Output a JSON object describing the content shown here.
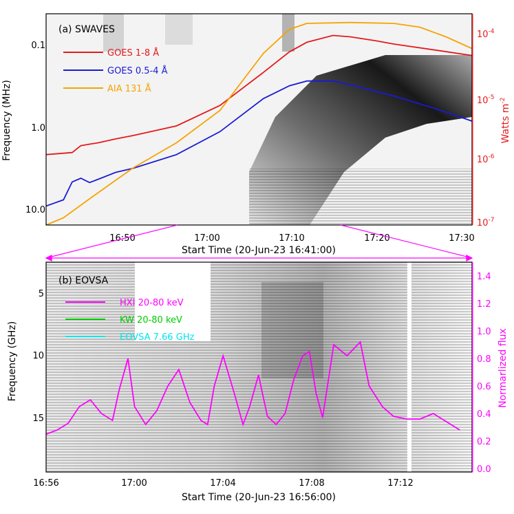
{
  "chart_data": [
    {
      "type": "line",
      "panel_label": "(a) SWAVES",
      "xlabel": "Start Time (20-Jun-23 16:41:00)",
      "ylabel": "Frequency (MHz)",
      "y2label": "Watts m",
      "y2label_sup": "-2",
      "x_ticks": [
        "16:50",
        "17:00",
        "17:10",
        "17:20",
        "17:30"
      ],
      "y_ticks": [
        "0.1",
        "1.0",
        "10.0"
      ],
      "y2_ticks": [
        {
          "base": "10",
          "exp": "-4"
        },
        {
          "base": "10",
          "exp": "-5"
        },
        {
          "base": "10",
          "exp": "-6"
        },
        {
          "base": "10",
          "exp": "-7"
        }
      ],
      "legend": [
        {
          "label": "GOES 1-8 Å",
          "color": "#e41a1c"
        },
        {
          "label": "GOES 0.5-4 Å",
          "color": "#1a1ad6"
        },
        {
          "label": "AIA 131 Å",
          "color": "#f5a300"
        }
      ],
      "series": [
        {
          "name": "GOES 1-8 Å",
          "color": "#e41a1c",
          "unit": "W m^-2",
          "t_min": [
            0,
            3,
            4,
            5,
            6,
            8,
            10,
            15,
            20,
            25,
            28,
            30,
            33,
            35,
            38,
            40,
            45,
            49
          ],
          "flux": [
            1.3e-06,
            1.4e-06,
            1.8e-06,
            1.9e-06,
            2e-06,
            2.3e-06,
            2.6e-06,
            3.7e-06,
            7.8e-06,
            2.6e-05,
            5.5e-05,
            7.8e-05,
            0.0001,
            9.5e-05,
            8.2e-05,
            7.3e-05,
            5.8e-05,
            4.8e-05
          ]
        },
        {
          "name": "GOES 0.5-4 Å",
          "color": "#1a1ad6",
          "unit": "W m^-2",
          "t_min": [
            0,
            2,
            3,
            4,
            5,
            6,
            8,
            10,
            15,
            20,
            25,
            28,
            30,
            33,
            35,
            40,
            45,
            49
          ],
          "flux": [
            2e-07,
            2.5e-07,
            4.8e-07,
            5.5e-07,
            4.7e-07,
            5.3e-07,
            6.8e-07,
            7.9e-07,
            1.3e-06,
            3e-06,
            1e-05,
            1.6e-05,
            1.9e-05,
            1.9e-05,
            1.65e-05,
            1.1e-05,
            6.8e-06,
            4.4e-06
          ]
        },
        {
          "name": "AIA 131 Å",
          "color": "#f5a300",
          "unit": "W m^-2 (scaled)",
          "t_min": [
            0,
            2,
            5,
            10,
            15,
            20,
            25,
            28,
            30,
            35,
            40,
            43,
            46,
            49
          ],
          "flux": [
            1e-07,
            1.3e-07,
            2.6e-07,
            8e-07,
            2e-06,
            6.5e-06,
            5.2e-05,
            0.000125,
            0.000155,
            0.00016,
            0.000155,
            0.000135,
            9.5e-05,
            6.2e-05
          ]
        }
      ]
    },
    {
      "type": "line",
      "panel_label": "(b) EOVSA",
      "xlabel": "Start Time (20-Jun-23 16:56:00)",
      "ylabel": "Frequency (GHz)",
      "y2label": "Normarlized flux",
      "x_ticks": [
        "16:56",
        "17:00",
        "17:04",
        "17:08",
        "17:12"
      ],
      "y_ticks": [
        "5",
        "10",
        "15"
      ],
      "y2_ticks": [
        "0.0",
        "0.2",
        "0.4",
        "0.6",
        "0.8",
        "1.0",
        "1.2",
        "1.4"
      ],
      "ylim2": [
        0,
        1.5
      ],
      "legend": [
        {
          "label": "HXI 20-80 keV",
          "color": "#ff00ff"
        },
        {
          "label": "KW 20-80 keV",
          "color": "#00cc00"
        },
        {
          "label": "EOVSA 7.66 GHz",
          "color": "#00e5ee"
        }
      ],
      "series": [
        {
          "name": "HXI 20-80 keV",
          "color": "#ff00ff",
          "t_min": [
            0,
            0.5,
            1.0,
            1.5,
            2.0,
            2.5,
            3.0,
            3.3,
            3.7,
            4.0,
            4.5,
            5.0,
            5.5,
            6.0,
            6.5,
            7.0,
            7.3,
            7.6,
            8.0,
            8.5,
            8.9,
            9.2,
            9.6,
            10.0,
            10.4,
            10.8,
            11.2,
            11.6,
            11.9,
            12.2,
            12.5,
            13.0,
            13.6,
            14.2,
            14.6,
            15.2,
            15.7,
            16.3,
            16.9,
            17.5,
            18.1,
            18.7
          ],
          "norm_flux": [
            0.25,
            0.28,
            0.33,
            0.45,
            0.5,
            0.4,
            0.35,
            0.57,
            0.8,
            0.45,
            0.32,
            0.42,
            0.6,
            0.72,
            0.48,
            0.35,
            0.32,
            0.6,
            0.82,
            0.55,
            0.32,
            0.45,
            0.68,
            0.38,
            0.32,
            0.4,
            0.65,
            0.82,
            0.85,
            0.55,
            0.37,
            0.9,
            0.82,
            0.92,
            0.6,
            0.45,
            0.38,
            0.36,
            0.36,
            0.4,
            0.34,
            0.28
          ]
        }
      ]
    }
  ]
}
